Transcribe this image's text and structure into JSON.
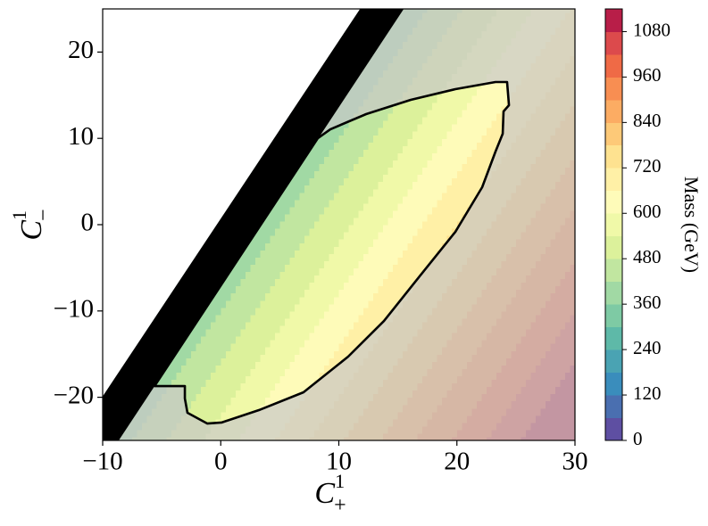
{
  "chart_data": {
    "type": "contour",
    "xlabel": {
      "symbol": "C",
      "superscript": "1",
      "subscript": "+"
    },
    "ylabel": {
      "symbol": "C",
      "superscript": "1",
      "subscript": "−"
    },
    "colorbar_label": "Mass (GeV)",
    "xlim": [
      -10,
      30
    ],
    "xticks": [
      {
        "value": -10,
        "label": "−10"
      },
      0,
      10,
      20,
      30
    ],
    "ylim": [
      -25,
      25
    ],
    "yticks": [
      {
        "value": -20,
        "label": "−20"
      },
      {
        "value": -10,
        "label": "−10"
      },
      0,
      10,
      20
    ],
    "x": [
      -10,
      -5,
      0,
      5,
      10,
      15,
      20,
      25,
      30
    ],
    "y": [
      -25,
      -20,
      -15,
      -10,
      -5,
      0,
      5,
      10,
      15,
      20,
      25
    ],
    "z": [
      [
        370,
        470,
        570,
        670,
        770,
        870,
        970,
        1070,
        1170
      ],
      [
        320,
        420,
        520,
        620,
        720,
        820,
        920,
        1020,
        1120
      ],
      [
        270,
        370,
        470,
        570,
        670,
        770,
        870,
        970,
        1070
      ],
      [
        220,
        320,
        420,
        520,
        620,
        720,
        820,
        920,
        1020
      ],
      [
        170,
        270,
        370,
        470,
        570,
        670,
        770,
        870,
        970
      ],
      [
        120,
        220,
        320,
        420,
        520,
        620,
        720,
        820,
        920
      ],
      [
        70,
        170,
        270,
        370,
        470,
        570,
        670,
        770,
        870
      ],
      [
        20,
        120,
        220,
        320,
        420,
        520,
        620,
        720,
        820
      ],
      [
        -30,
        70,
        170,
        270,
        370,
        470,
        570,
        670,
        770
      ],
      [
        -80,
        20,
        120,
        220,
        320,
        420,
        520,
        620,
        720
      ],
      [
        -130,
        -30,
        70,
        170,
        270,
        370,
        470,
        570,
        670
      ]
    ],
    "levels": [
      0,
      60,
      120,
      180,
      240,
      300,
      360,
      420,
      480,
      540,
      600,
      660,
      720,
      780,
      840,
      900,
      960,
      1020,
      1080,
      1140
    ],
    "colors": [
      "#5e4fa2",
      "#4a6fb0",
      "#3a8dbc",
      "#4aa3b3",
      "#5eb9a8",
      "#7ecaa4",
      "#a1d9a4",
      "#c1e6a0",
      "#dcf19b",
      "#f0f9a8",
      "#fefbb9",
      "#fff0a6",
      "#fee290",
      "#fdc978",
      "#fcac63",
      "#f88e52",
      "#ef6a46",
      "#dc4a4c",
      "#b81e48"
    ],
    "colorbar_ticks": [
      0,
      120,
      240,
      360,
      480,
      600,
      720,
      840,
      960,
      1080
    ],
    "boundary": {
      "x": [
        -5.61,
        -3.04,
        -3.04,
        -2.82,
        -1.15,
        0.06,
        3.23,
        7.01,
        10.79,
        13.82,
        16.84,
        19.87,
        22.14,
        23.27,
        23.88,
        23.95,
        24.41,
        24.25,
        23.27,
        19.87,
        16.09,
        12.31,
        9.28,
        8.22
      ],
      "y": [
        -18.7,
        -18.7,
        -20.14,
        -21.8,
        -23.04,
        -22.93,
        -21.49,
        -19.42,
        -15.29,
        -11.16,
        -5.99,
        -0.83,
        4.34,
        8.47,
        10.54,
        13.12,
        13.84,
        16.53,
        16.53,
        15.7,
        14.46,
        12.81,
        11.05,
        10.02
      ]
    },
    "excluded_region": {
      "x": [
        -10,
        11.8,
        -10
      ],
      "y": [
        -19.9,
        25,
        25
      ]
    },
    "excluded_band": {
      "x": [
        -10,
        11.8,
        15.5,
        -8.64,
        -10
      ],
      "y": [
        -19.9,
        25,
        25,
        -25,
        -25
      ]
    }
  }
}
